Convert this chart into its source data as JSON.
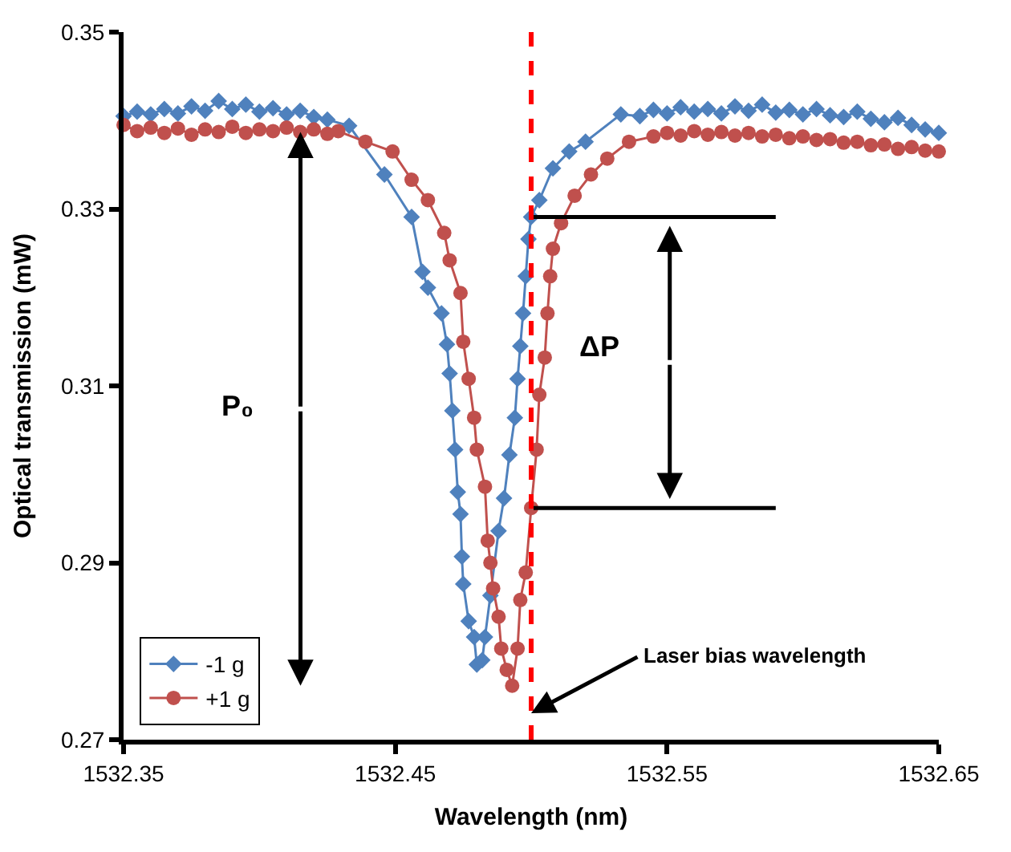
{
  "chart_data": {
    "type": "line",
    "xlabel": "Wavelength (nm)",
    "ylabel": "Optical transmission (mW)",
    "xlim": [
      1532.35,
      1532.65
    ],
    "xticks": [
      1532.35,
      1532.45,
      1532.55,
      1532.65
    ],
    "ylim": [
      0.27,
      0.35
    ],
    "yticks": [
      0.27,
      0.29,
      0.31,
      0.33,
      0.35
    ],
    "legend": "bottom left",
    "series": [
      {
        "name": "-1 g",
        "color": "#4f81bd",
        "marker": "diamond",
        "x": [
          1532.35,
          1532.355,
          1532.36,
          1532.365,
          1532.37,
          1532.375,
          1532.38,
          1532.385,
          1532.39,
          1532.395,
          1532.4,
          1532.405,
          1532.41,
          1532.415,
          1532.42,
          1532.425,
          1532.433,
          1532.446,
          1532.456,
          1532.46,
          1532.462,
          1532.467,
          1532.469,
          1532.47,
          1532.471,
          1532.472,
          1532.473,
          1532.474,
          1532.4745,
          1532.475,
          1532.477,
          1532.479,
          1532.48,
          1532.482,
          1532.483,
          1532.485,
          1532.488,
          1532.49,
          1532.492,
          1532.494,
          1532.495,
          1532.496,
          1532.497,
          1532.498,
          1532.499,
          1532.5,
          1532.503,
          1532.508,
          1532.514,
          1532.52,
          1532.533,
          1532.54,
          1532.545,
          1532.55,
          1532.555,
          1532.56,
          1532.565,
          1532.57,
          1532.575,
          1532.58,
          1532.585,
          1532.59,
          1532.595,
          1532.6,
          1532.605,
          1532.61,
          1532.615,
          1532.62,
          1532.625,
          1532.63,
          1532.635,
          1532.64,
          1532.645,
          1532.65
        ],
        "values": [
          0.3405,
          0.341,
          0.3407,
          0.3413,
          0.3408,
          0.3416,
          0.3411,
          0.3422,
          0.3413,
          0.3418,
          0.341,
          0.3414,
          0.3407,
          0.3411,
          0.3404,
          0.3401,
          0.3394,
          0.3339,
          0.3291,
          0.3229,
          0.3211,
          0.3182,
          0.3147,
          0.3114,
          0.3072,
          0.3028,
          0.298,
          0.2955,
          0.2907,
          0.2876,
          0.2834,
          0.2816,
          0.2785,
          0.279,
          0.2816,
          0.2863,
          0.2936,
          0.2973,
          0.3022,
          0.3064,
          0.3108,
          0.3145,
          0.3182,
          0.3224,
          0.3266,
          0.3291,
          0.331,
          0.3346,
          0.3365,
          0.3376,
          0.3407,
          0.3405,
          0.3412,
          0.3408,
          0.3415,
          0.341,
          0.3413,
          0.3408,
          0.3416,
          0.3411,
          0.3418,
          0.3409,
          0.3412,
          0.3407,
          0.3413,
          0.3406,
          0.3404,
          0.341,
          0.3402,
          0.3398,
          0.3403,
          0.3395,
          0.339,
          0.3386
        ]
      },
      {
        "name": "+1 g",
        "color": "#c0504d",
        "marker": "circle",
        "x": [
          1532.35,
          1532.355,
          1532.36,
          1532.365,
          1532.37,
          1532.375,
          1532.38,
          1532.385,
          1532.39,
          1532.395,
          1532.4,
          1532.405,
          1532.41,
          1532.415,
          1532.42,
          1532.425,
          1532.429,
          1532.439,
          1532.449,
          1532.456,
          1532.462,
          1532.468,
          1532.47,
          1532.474,
          1532.475,
          1532.477,
          1532.479,
          1532.48,
          1532.483,
          1532.484,
          1532.485,
          1532.486,
          1532.488,
          1532.489,
          1532.491,
          1532.493,
          1532.495,
          1532.496,
          1532.498,
          1532.5,
          1532.502,
          1532.503,
          1532.505,
          1532.506,
          1532.507,
          1532.508,
          1532.511,
          1532.516,
          1532.522,
          1532.528,
          1532.536,
          1532.545,
          1532.55,
          1532.555,
          1532.56,
          1532.565,
          1532.57,
          1532.575,
          1532.58,
          1532.585,
          1532.59,
          1532.595,
          1532.6,
          1532.605,
          1532.61,
          1532.615,
          1532.62,
          1532.625,
          1532.63,
          1532.635,
          1532.64,
          1532.645,
          1532.65
        ],
        "values": [
          0.3395,
          0.3388,
          0.3392,
          0.3386,
          0.3391,
          0.3384,
          0.339,
          0.3387,
          0.3393,
          0.3386,
          0.339,
          0.3388,
          0.3392,
          0.3387,
          0.339,
          0.3385,
          0.3388,
          0.3376,
          0.3365,
          0.3333,
          0.331,
          0.3273,
          0.3242,
          0.3205,
          0.315,
          0.3108,
          0.3064,
          0.3028,
          0.2986,
          0.2925,
          0.29,
          0.2871,
          0.2839,
          0.2803,
          0.2779,
          0.2761,
          0.2803,
          0.2858,
          0.2889,
          0.2962,
          0.3028,
          0.309,
          0.3132,
          0.3182,
          0.3224,
          0.3255,
          0.3284,
          0.3315,
          0.3339,
          0.3357,
          0.3376,
          0.3382,
          0.3386,
          0.3383,
          0.3388,
          0.3384,
          0.3387,
          0.3383,
          0.3386,
          0.3382,
          0.3384,
          0.338,
          0.3382,
          0.3378,
          0.3379,
          0.3375,
          0.3376,
          0.3372,
          0.3373,
          0.3368,
          0.337,
          0.3366,
          0.3365
        ]
      }
    ],
    "ref_lines": [
      {
        "axis": "x",
        "value": 1532.5,
        "label": "Laser bias wavelength",
        "color": "#ff0000",
        "line_style": "dashed"
      }
    ],
    "annotations": [
      "P₀",
      "ΔP"
    ]
  }
}
